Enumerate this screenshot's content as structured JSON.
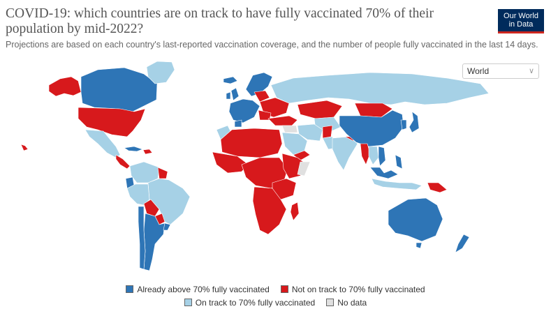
{
  "header": {
    "title": "COVID-19: which countries are on track to have fully vaccinated 70% of their population by mid-2022?",
    "subtitle": "Projections are based on each country's last-reported vaccination coverage, and the number of people fully vaccinated in the last 14 days.",
    "logo_line1": "Our World",
    "logo_line2": "in Data"
  },
  "controls": {
    "region_value": "World",
    "chevron_icon": "chevron-down-icon"
  },
  "colors": {
    "above": "#2e75b6",
    "not_on_track": "#d7191c",
    "on_track": "#a6d1e6",
    "no_data": "#e0e0e0",
    "border": "#ffffff"
  },
  "legend": [
    {
      "label": "Already above 70% fully vaccinated",
      "color": "#2e75b6"
    },
    {
      "label": "Not on track to 70% fully vaccinated",
      "color": "#d7191c"
    },
    {
      "label": "On track to 70% fully vaccinated",
      "color": "#a6d1e6"
    },
    {
      "label": "No data",
      "color": "#e0e0e0"
    }
  ]
}
